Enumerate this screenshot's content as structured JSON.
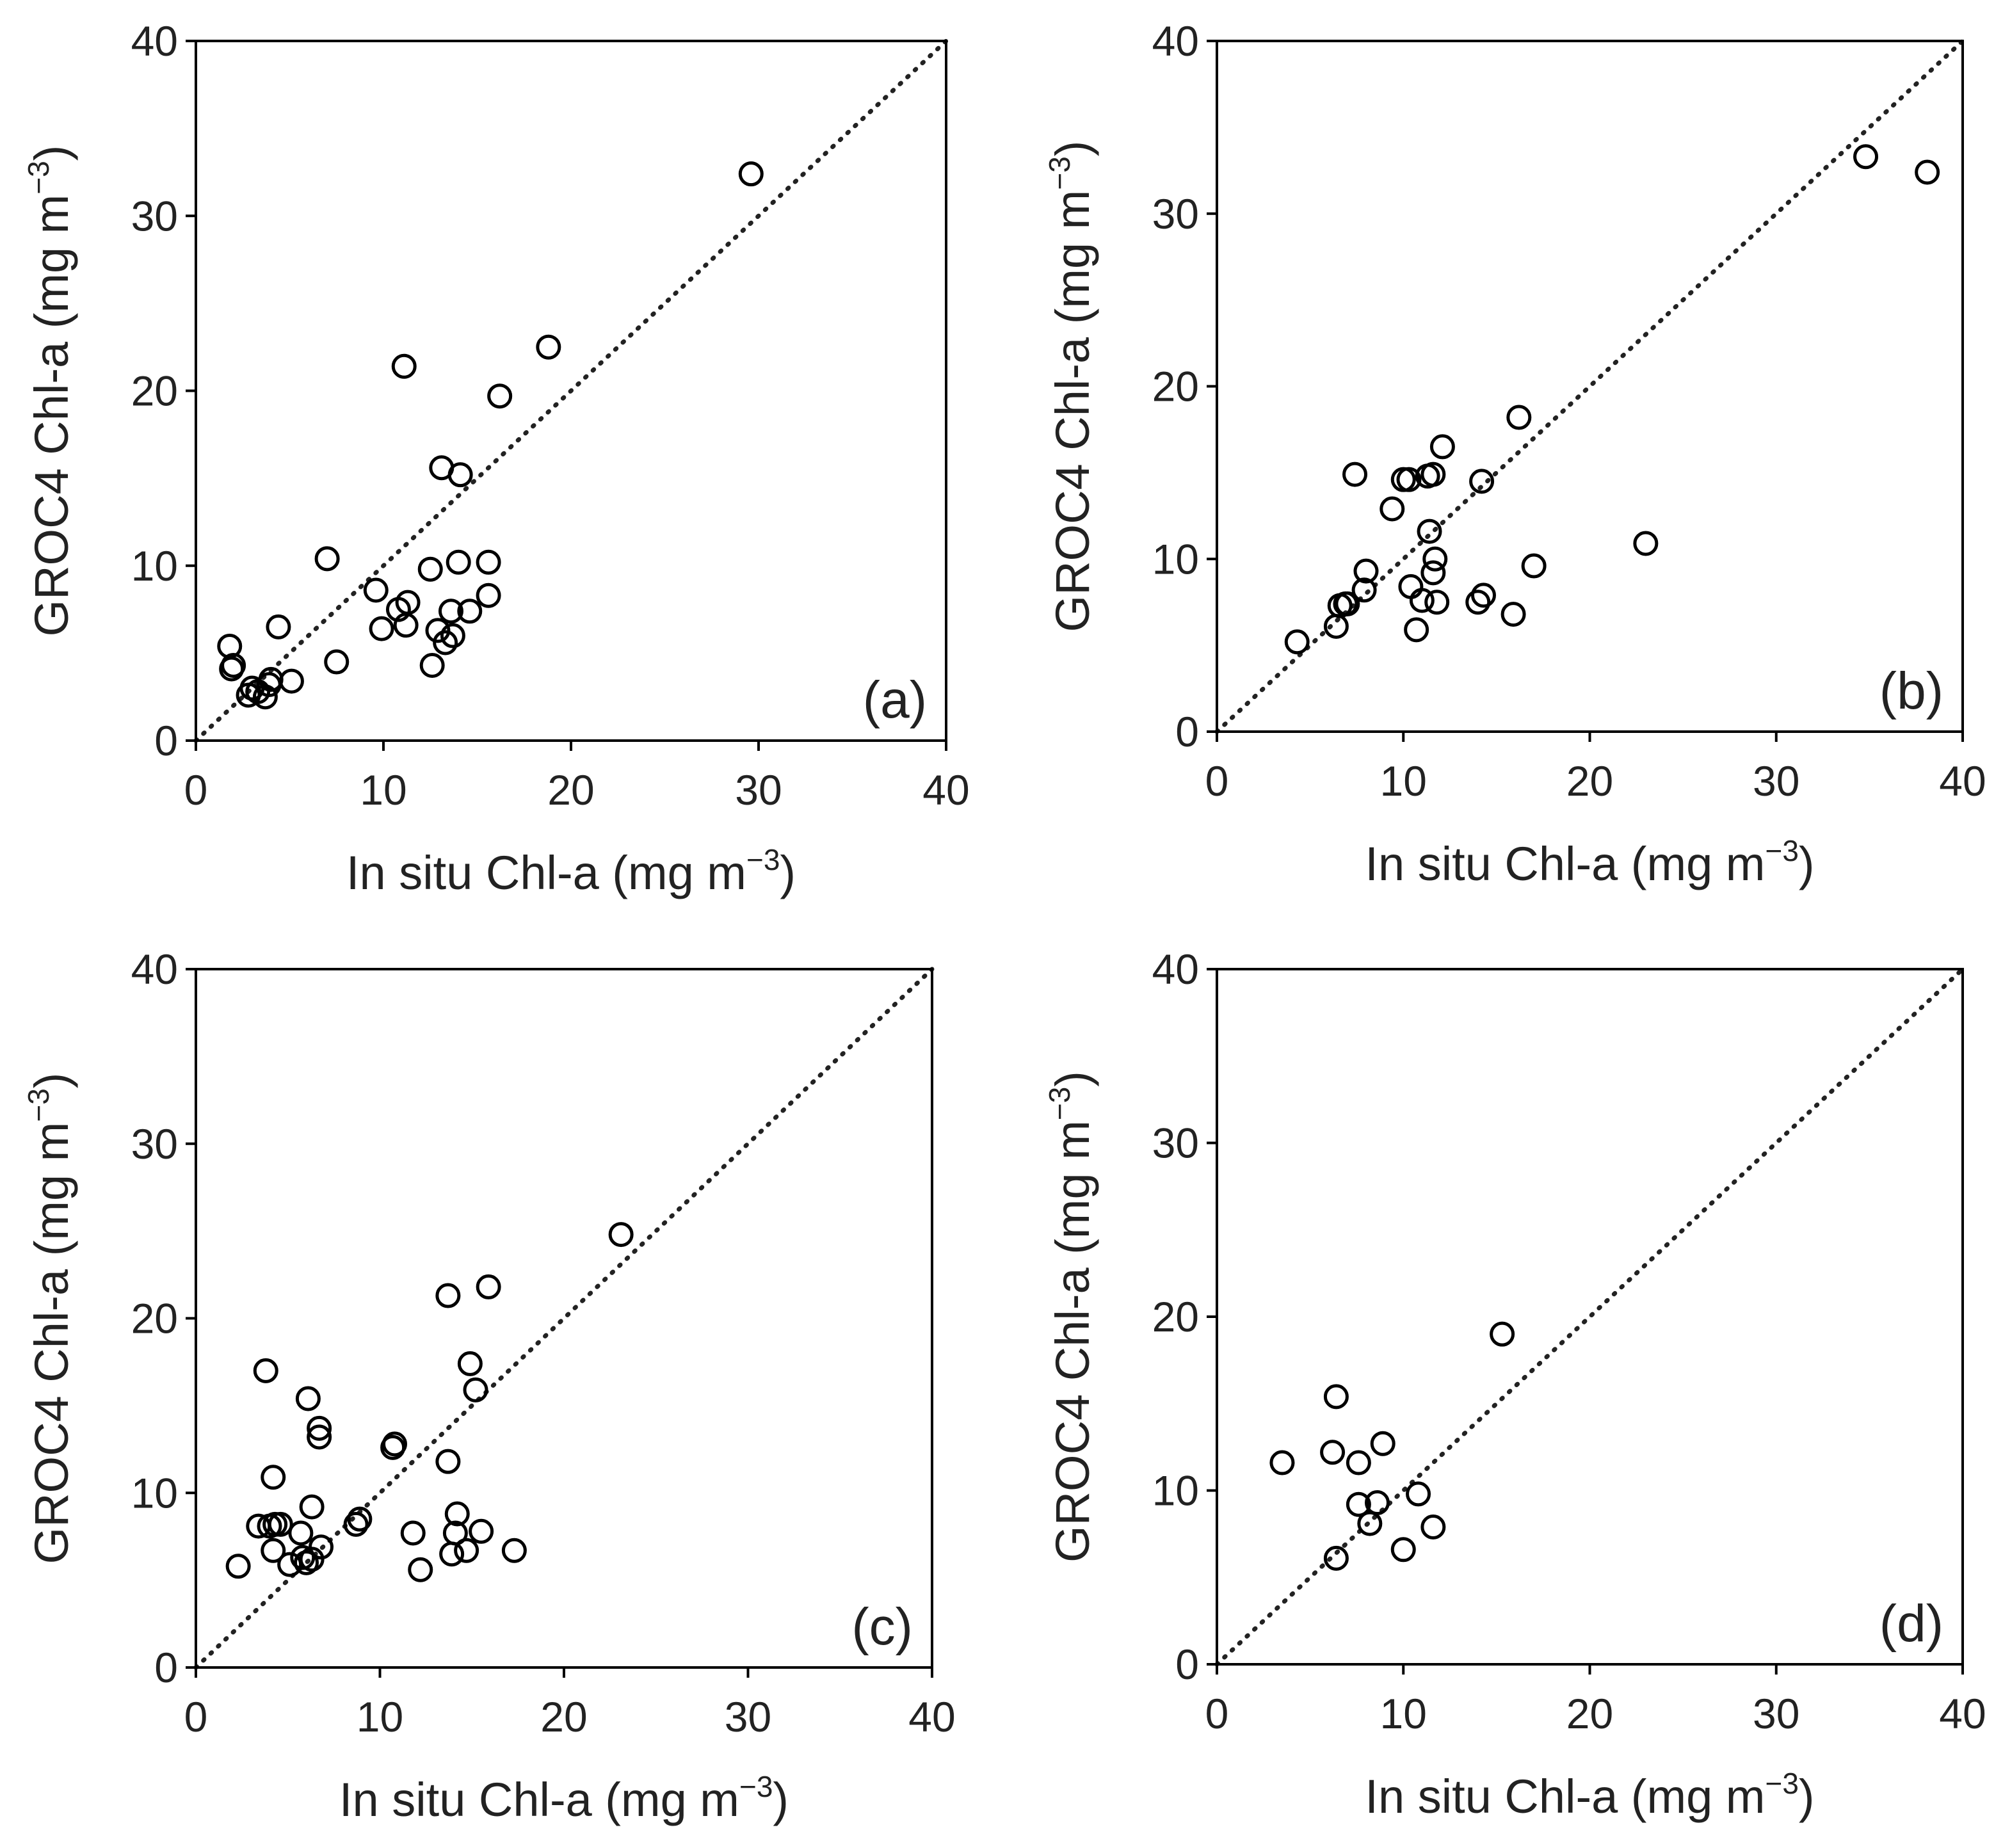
{
  "chart_data": [
    {
      "type": "scatter",
      "panel_label": "(a)",
      "xlabel": "In situ Chl-a (mg m",
      "ylabel": "GROC4 Chl-a (mg m",
      "label_exponent": "−3",
      "label_close": ")",
      "xlim": [
        0,
        40
      ],
      "ylim": [
        0,
        40
      ],
      "xticks": [
        "0",
        "10",
        "20",
        "30",
        "40"
      ],
      "yticks": [
        "0",
        "10",
        "20",
        "30",
        "40"
      ],
      "reference_line": "1:1 dotted",
      "x": [
        29.6,
        18.8,
        11.1,
        16.2,
        13.1,
        14.1,
        7.0,
        9.6,
        10.8,
        11.3,
        12.5,
        14.0,
        15.6,
        9.9,
        11.2,
        12.9,
        13.6,
        14.6,
        15.6,
        13.3,
        12.6,
        13.7,
        1.8,
        1.9,
        2.0,
        4.4,
        7.5,
        5.1,
        3.9,
        3.7,
        3.3,
        3.0,
        2.8,
        4.0
      ],
      "y": [
        32.4,
        22.5,
        21.4,
        19.7,
        15.6,
        15.2,
        10.4,
        8.6,
        7.5,
        7.9,
        9.8,
        10.2,
        10.2,
        6.4,
        6.6,
        6.3,
        7.4,
        7.4,
        8.3,
        5.6,
        4.3,
        6.0,
        5.4,
        4.1,
        4.3,
        6.5,
        4.5,
        3.4,
        3.2,
        2.5,
        2.8,
        3.0,
        2.6,
        3.5
      ]
    },
    {
      "type": "scatter",
      "panel_label": "(b)",
      "xlabel": "In situ Chl-a (mg m",
      "ylabel": "GROC4 Chl-a (mg m",
      "label_exponent": "−3",
      "label_close": ")",
      "xlim": [
        0,
        40
      ],
      "ylim": [
        0,
        40
      ],
      "xticks": [
        "0",
        "10",
        "20",
        "30",
        "40"
      ],
      "yticks": [
        "0",
        "10",
        "20",
        "30",
        "40"
      ],
      "reference_line": "1:1 dotted",
      "x": [
        34.8,
        38.1,
        16.2,
        12.1,
        7.4,
        10.0,
        10.3,
        11.3,
        11.6,
        14.2,
        9.4,
        11.4,
        11.7,
        11.6,
        8.0,
        10.4,
        7.9,
        7.0,
        6.6,
        6.4,
        11.0,
        11.8,
        14.0,
        14.3,
        15.9,
        17.0,
        23.0,
        10.7,
        4.3,
        6.9
      ],
      "y": [
        33.3,
        32.4,
        18.2,
        16.5,
        14.9,
        14.6,
        14.6,
        14.8,
        14.9,
        14.5,
        12.9,
        11.6,
        10.0,
        9.2,
        9.3,
        8.4,
        8.2,
        7.4,
        7.3,
        6.1,
        7.6,
        7.5,
        7.5,
        7.9,
        6.8,
        9.6,
        10.9,
        5.9,
        5.2,
        7.4
      ]
    },
    {
      "type": "scatter",
      "panel_label": "(c)",
      "xlabel": "In situ Chl-a (mg m",
      "ylabel": "GROC4 Chl-a (mg m",
      "label_exponent": "−3",
      "label_close": ")",
      "xlim": [
        0,
        40
      ],
      "ylim": [
        0,
        40
      ],
      "xticks": [
        "0",
        "10",
        "20",
        "30",
        "40"
      ],
      "yticks": [
        "0",
        "10",
        "20",
        "30",
        "40"
      ],
      "reference_line": "1:1 dotted",
      "x": [
        23.1,
        15.9,
        13.7,
        14.9,
        15.2,
        3.8,
        6.1,
        6.7,
        6.7,
        10.8,
        10.7,
        13.7,
        4.2,
        6.3,
        3.4,
        4.0,
        4.3,
        4.6,
        5.7,
        8.7,
        8.9,
        11.8,
        14.2,
        14.1,
        15.5,
        17.3,
        14.7,
        13.9,
        12.2,
        2.3,
        4.2,
        5.1,
        5.8,
        6.0,
        6.3,
        6.8
      ],
      "y": [
        24.8,
        21.8,
        21.3,
        17.4,
        15.9,
        17.0,
        15.4,
        13.7,
        13.2,
        12.8,
        12.6,
        11.8,
        10.9,
        9.2,
        8.1,
        8.1,
        8.2,
        8.2,
        7.7,
        8.2,
        8.5,
        7.7,
        8.8,
        7.7,
        7.8,
        6.7,
        6.7,
        6.5,
        5.6,
        5.8,
        6.7,
        5.9,
        6.3,
        6.0,
        6.2,
        6.9
      ]
    },
    {
      "type": "scatter",
      "panel_label": "(d)",
      "xlabel": "In situ Chl-a (mg m",
      "ylabel": "GROC4 Chl-a (mg m",
      "label_exponent": "−3",
      "label_close": ")",
      "xlim": [
        0,
        40
      ],
      "ylim": [
        0,
        40
      ],
      "xticks": [
        "0",
        "10",
        "20",
        "30",
        "40"
      ],
      "yticks": [
        "0",
        "10",
        "20",
        "30",
        "40"
      ],
      "reference_line": "1:1 dotted",
      "x": [
        15.3,
        6.4,
        3.5,
        6.2,
        8.9,
        7.6,
        7.6,
        8.6,
        10.8,
        8.2,
        11.6,
        10.0,
        6.4
      ],
      "y": [
        19.0,
        15.4,
        11.6,
        12.2,
        12.7,
        11.6,
        9.2,
        9.3,
        9.8,
        8.1,
        7.9,
        6.6,
        6.1
      ]
    }
  ]
}
